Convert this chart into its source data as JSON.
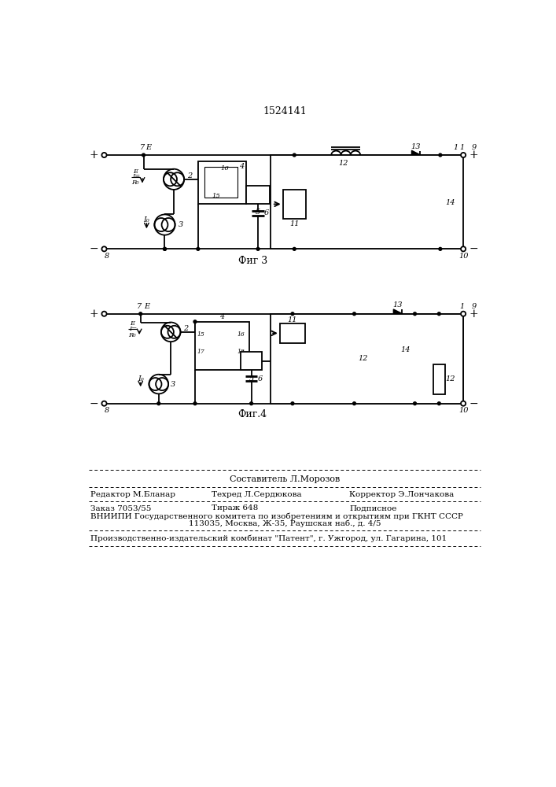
{
  "title": "1524141",
  "fig3_label": "Фиг 3",
  "fig4_label": "Фиг.4",
  "footer_line1": "Составитель Л.Морозов",
  "footer_line2_col1": "Редактор М.Бланар",
  "footer_line2_col2": "Техред Л.Сердюкова",
  "footer_line2_col3": "Корректор Э.Лончакова",
  "footer_line3_col1": "Заказ 7053/55",
  "footer_line3_col2": "Тираж 648",
  "footer_line3_col3": "Подписное",
  "footer_line4": "ВНИИПИ Государственного комитета по изобретениям и открытиям при ГКНТ СССР",
  "footer_line5": "113035, Москва, Ж-35, Раушская наб., д. 4/5",
  "footer_line6": "Производственно-издательский комбинат \"Патент\", г. Ужгород, ул. Гагарина, 101",
  "bg_color": "#ffffff"
}
